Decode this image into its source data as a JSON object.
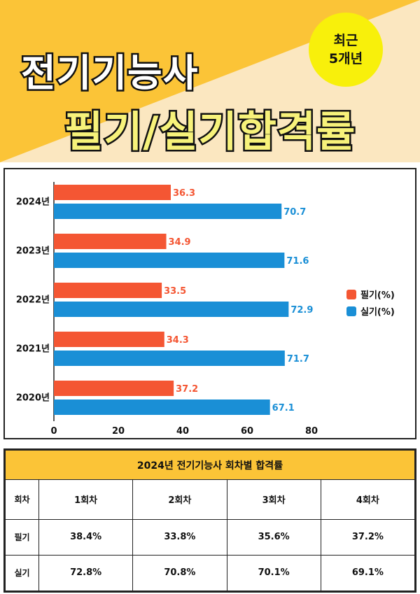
{
  "header": {
    "title_line1": "전기기능사",
    "title_line2": "필기/실기합격률",
    "badge_line1": "최근",
    "badge_line2": "5개년"
  },
  "colors": {
    "written": "#f45633",
    "practical": "#1a8fd6",
    "header_bg": "#fbe7c0",
    "header_accent": "#fbc437",
    "badge": "#f8f00b",
    "table_caption": "#fbc437"
  },
  "chart_data": {
    "type": "bar",
    "orientation": "horizontal",
    "categories": [
      "2024년",
      "2023년",
      "2022년",
      "2021년",
      "2020년"
    ],
    "series": [
      {
        "name": "필기(%)",
        "values": [
          36.3,
          34.9,
          33.5,
          34.3,
          37.2
        ]
      },
      {
        "name": "실기(%)",
        "values": [
          70.7,
          71.6,
          72.9,
          71.7,
          67.1
        ]
      }
    ],
    "value_labels": {
      "written": [
        "36.3",
        "34.9",
        "33.5",
        "34.3",
        "37.2"
      ],
      "practical": [
        "70.7",
        "71.6",
        "72.9",
        "71.7",
        "67.1"
      ]
    },
    "xticks": [
      "0",
      "20",
      "40",
      "60",
      "80"
    ],
    "xlim": [
      0,
      80
    ],
    "grid": false,
    "legend_position": "right"
  },
  "table": {
    "caption": "2024년 전기기능사 회차별 합격률",
    "header": [
      "회차",
      "1회차",
      "2회차",
      "3회차",
      "4회차"
    ],
    "rows": [
      [
        "필기",
        "38.4%",
        "33.8%",
        "35.6%",
        "37.2%"
      ],
      [
        "실기",
        "72.8%",
        "70.8%",
        "70.1%",
        "69.1%"
      ]
    ]
  }
}
